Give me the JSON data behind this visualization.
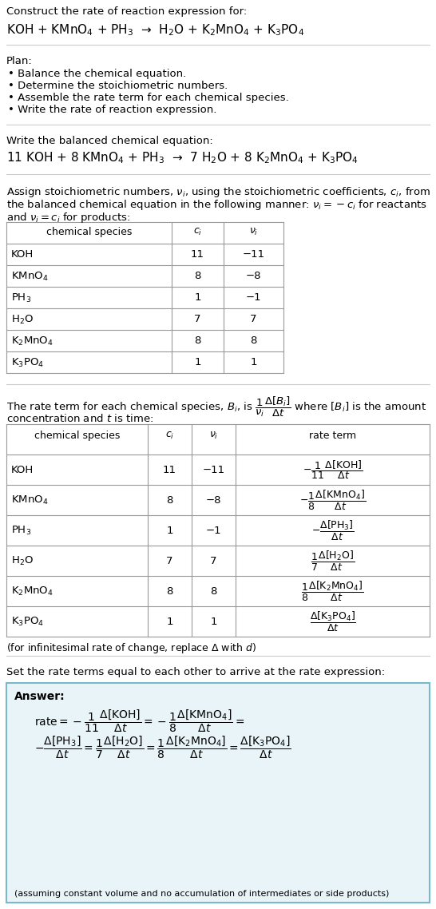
{
  "title_line1": "Construct the rate of reaction expression for:",
  "reaction_unbalanced": "KOH + KMnO$_4$ + PH$_3$  →  H$_2$O + K$_2$MnO$_4$ + K$_3$PO$_4$",
  "plan_header": "Plan:",
  "plan_items": [
    "• Balance the chemical equation.",
    "• Determine the stoichiometric numbers.",
    "• Assemble the rate term for each chemical species.",
    "• Write the rate of reaction expression."
  ],
  "balanced_header": "Write the balanced chemical equation:",
  "reaction_balanced": "11 KOH + 8 KMnO$_4$ + PH$_3$  →  7 H$_2$O + 8 K$_2$MnO$_4$ + K$_3$PO$_4$",
  "assign_text1": "Assign stoichiometric numbers, $\\nu_i$, using the stoichiometric coefficients, $c_i$, from",
  "assign_text2": "the balanced chemical equation in the following manner: $\\nu_i = -c_i$ for reactants",
  "assign_text3": "and $\\nu_i = c_i$ for products:",
  "table1_headers": [
    "chemical species",
    "$c_i$",
    "$\\nu_i$"
  ],
  "table1_data": [
    [
      "KOH",
      "11",
      "−11"
    ],
    [
      "KMnO$_4$",
      "8",
      "−8"
    ],
    [
      "PH$_3$",
      "1",
      "−1"
    ],
    [
      "H$_2$O",
      "7",
      "7"
    ],
    [
      "K$_2$MnO$_4$",
      "8",
      "8"
    ],
    [
      "K$_3$PO$_4$",
      "1",
      "1"
    ]
  ],
  "rate_text1": "The rate term for each chemical species, $B_i$, is $\\dfrac{1}{\\nu_i}\\dfrac{\\Delta[B_i]}{\\Delta t}$ where $[B_i]$ is the amount",
  "rate_text2": "concentration and $t$ is time:",
  "table2_headers": [
    "chemical species",
    "$c_i$",
    "$\\nu_i$",
    "rate term"
  ],
  "table2_data": [
    [
      "KOH",
      "11",
      "−11",
      "$-\\dfrac{1}{11}\\dfrac{\\Delta[\\mathrm{KOH}]}{\\Delta t}$"
    ],
    [
      "KMnO$_4$",
      "8",
      "−8",
      "$-\\dfrac{1}{8}\\dfrac{\\Delta[\\mathrm{KMnO_4}]}{\\Delta t}$"
    ],
    [
      "PH$_3$",
      "1",
      "−1",
      "$-\\dfrac{\\Delta[\\mathrm{PH_3}]}{\\Delta t}$"
    ],
    [
      "H$_2$O",
      "7",
      "7",
      "$\\dfrac{1}{7}\\dfrac{\\Delta[\\mathrm{H_2O}]}{\\Delta t}$"
    ],
    [
      "K$_2$MnO$_4$",
      "8",
      "8",
      "$\\dfrac{1}{8}\\dfrac{\\Delta[\\mathrm{K_2MnO_4}]}{\\Delta t}$"
    ],
    [
      "K$_3$PO$_4$",
      "1",
      "1",
      "$\\dfrac{\\Delta[\\mathrm{K_3PO_4}]}{\\Delta t}$"
    ]
  ],
  "infinitesimal_note": "(for infinitesimal rate of change, replace Δ with $d$)",
  "set_rate_text": "Set the rate terms equal to each other to arrive at the rate expression:",
  "answer_label": "Answer:",
  "answer_box_color": "#e8f4f8",
  "answer_box_border": "#7ab8cc",
  "answer_line1": "$\\mathrm{rate} = -\\dfrac{1}{11}\\dfrac{\\Delta[\\mathrm{KOH}]}{\\Delta t} = -\\dfrac{1}{8}\\dfrac{\\Delta[\\mathrm{KMnO_4}]}{\\Delta t} =$",
  "answer_line2": "$-\\dfrac{\\Delta[\\mathrm{PH_3}]}{\\Delta t} = \\dfrac{1}{7}\\dfrac{\\Delta[\\mathrm{H_2O}]}{\\Delta t} = \\dfrac{1}{8}\\dfrac{\\Delta[\\mathrm{K_2MnO_4}]}{\\Delta t} = \\dfrac{\\Delta[\\mathrm{K_3PO_4}]}{\\Delta t}$",
  "answer_note": "(assuming constant volume and no accumulation of intermediates or side products)",
  "bg_color": "#ffffff",
  "text_color": "#000000",
  "table_line_color": "#999999",
  "hline_color": "#cccccc",
  "font_size": 9.5,
  "small_font_size": 8.5
}
